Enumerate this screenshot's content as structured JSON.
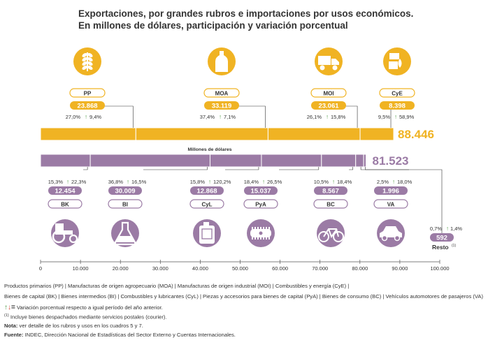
{
  "title_line1": "Exportaciones, por grandes rubros e importaciones por usos económicos.",
  "title_line2": "En millones de dólares, participación y variación porcentual",
  "chart_data": {
    "type": "bar",
    "orientation": "horizontal-stacked",
    "unit": "Millones de dólares",
    "xlim": [
      0,
      100000
    ],
    "xticks": [
      "0",
      "10.000",
      "20.000",
      "30.000",
      "40.000",
      "50.000",
      "60.000",
      "70.000",
      "80.000",
      "90.000",
      "100.000"
    ],
    "exports": {
      "total_label": "88.446",
      "total": 88446,
      "color": "#F0B323",
      "segments": [
        {
          "code": "PP",
          "value": 23868,
          "value_label": "23.868",
          "share": "27,0%",
          "change": "9,4%",
          "icon": "wheat-icon"
        },
        {
          "code": "MOA",
          "value": 33119,
          "value_label": "33.119",
          "share": "37,4%",
          "change": "7,1%",
          "icon": "bottle-icon"
        },
        {
          "code": "MOI",
          "value": 23061,
          "value_label": "23.061",
          "share": "26,1%",
          "change": "15,8%",
          "icon": "truck-icon"
        },
        {
          "code": "CyE",
          "value": 8398,
          "value_label": "8.398",
          "share": "9,5%",
          "change": "58,9%",
          "icon": "fuel-icon"
        }
      ]
    },
    "imports": {
      "total_label": "81.523",
      "total": 81523,
      "color": "#9B7BA5",
      "segments": [
        {
          "code": "BK",
          "value": 12454,
          "value_label": "12.454",
          "share": "15,3%",
          "change": "22,3%",
          "icon": "tractor-icon"
        },
        {
          "code": "BI",
          "value": 30009,
          "value_label": "30.009",
          "share": "36,8%",
          "change": "16,5%",
          "icon": "flask-icon"
        },
        {
          "code": "CyL",
          "value": 12868,
          "value_label": "12.868",
          "share": "15,8%",
          "change": "120,2%",
          "icon": "jerrycan-icon"
        },
        {
          "code": "PyA",
          "value": 15037,
          "value_label": "15.037",
          "share": "18,4%",
          "change": "26,5%",
          "icon": "gear-part-icon"
        },
        {
          "code": "BC",
          "value": 8567,
          "value_label": "8.567",
          "share": "10,5%",
          "change": "18,4%",
          "icon": "bicycle-icon"
        },
        {
          "code": "VA",
          "value": 1996,
          "value_label": "1.996",
          "share": "2,5%",
          "change": "18,0%",
          "icon": "car-icon"
        },
        {
          "code": "Resto",
          "value": 592,
          "value_label": "592",
          "share": "0,7%",
          "change": "1,4%",
          "icon": ""
        }
      ],
      "resto_label": "Resto",
      "resto_sup": "(1)"
    },
    "colors": {
      "export": "#F0B323",
      "import": "#9B7BA5",
      "up": "#4E9A45",
      "down": "#D9463A",
      "text": "#333333"
    }
  },
  "legend_line": "Productos primarios (PP) | Manufacturas de origen agropecuario (MOA) | Manufacturas de origen industrial (MOI) | Combustibles y energía (CyE) |",
  "legend_line2": "Bienes de capital (BK) | Bienes intermedios (BI) | Combustibles y lubricantes (CyL) | Piezas y accesorios para bienes de capital (PyA) | Bienes de consumo (BC) | Vehículos automotores de pasajeros (VA)",
  "variation_note": "Variación porcentual respecto a igual período del año anterior.",
  "note1_sup": "(1)",
  "note1": "Incluye bienes despachados mediante servicios postales (courier).",
  "nota_label": "Nota:",
  "nota_text": "ver detalle de los rubros y usos en los cuadros 5 y 7.",
  "fuente_label": "Fuente:",
  "fuente_text": "INDEC, Dirección Nacional de Estadísticas del Sector Externo y Cuentas Internacionales."
}
